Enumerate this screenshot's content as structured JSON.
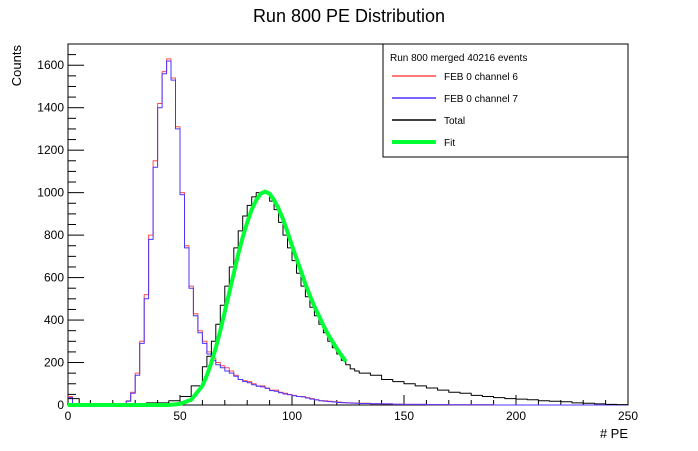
{
  "chart_data": {
    "type": "line",
    "title": "Run 800 PE Distribution",
    "xlabel": "# PE",
    "ylabel": "Counts",
    "xlim": [
      0,
      250
    ],
    "ylim": [
      0,
      1700
    ],
    "x_ticks": [
      0,
      50,
      100,
      150,
      200,
      250
    ],
    "y_ticks": [
      0,
      200,
      400,
      600,
      800,
      1000,
      1200,
      1400,
      1600
    ],
    "grid": false,
    "legend_position": "top-right",
    "legend_header": "Run 800 merged 40216 events",
    "series": [
      {
        "name": "FEB 0 channel 6",
        "color": "#ff4d4d",
        "style": "histogram",
        "x": [
          0,
          2,
          4,
          6,
          8,
          10,
          12,
          14,
          16,
          18,
          20,
          22,
          24,
          26,
          28,
          30,
          32,
          34,
          36,
          38,
          40,
          42,
          44,
          46,
          48,
          50,
          52,
          54,
          56,
          58,
          60,
          62,
          64,
          66,
          68,
          70,
          72,
          74,
          76,
          78,
          80,
          82,
          84,
          86,
          88,
          90,
          92,
          94,
          96,
          98,
          100,
          102,
          104,
          106,
          108,
          110,
          112,
          114,
          116,
          118,
          120,
          122,
          124,
          126,
          128,
          130,
          135,
          140,
          145,
          150,
          160,
          170,
          180,
          190,
          200,
          210,
          220,
          230,
          240,
          250
        ],
        "values": [
          40,
          0,
          0,
          0,
          0,
          0,
          0,
          0,
          0,
          0,
          0,
          0,
          5,
          20,
          60,
          150,
          300,
          520,
          800,
          1150,
          1420,
          1570,
          1630,
          1540,
          1310,
          1000,
          750,
          560,
          430,
          350,
          300,
          250,
          220,
          200,
          185,
          175,
          160,
          140,
          120,
          115,
          110,
          100,
          90,
          90,
          80,
          70,
          70,
          60,
          55,
          50,
          45,
          40,
          40,
          35,
          30,
          25,
          20,
          20,
          18,
          16,
          14,
          12,
          10,
          10,
          9,
          8,
          6,
          5,
          4,
          3,
          2,
          1,
          1,
          0,
          0,
          0,
          0,
          0,
          0,
          0
        ]
      },
      {
        "name": "FEB 0 channel 7",
        "color": "#4d33ff",
        "style": "histogram",
        "x": [
          0,
          2,
          4,
          6,
          8,
          10,
          12,
          14,
          16,
          18,
          20,
          22,
          24,
          26,
          28,
          30,
          32,
          34,
          36,
          38,
          40,
          42,
          44,
          46,
          48,
          50,
          52,
          54,
          56,
          58,
          60,
          62,
          64,
          66,
          68,
          70,
          72,
          74,
          76,
          78,
          80,
          82,
          84,
          86,
          88,
          90,
          92,
          94,
          96,
          98,
          100,
          102,
          104,
          106,
          108,
          110,
          112,
          114,
          116,
          118,
          120,
          122,
          124,
          126,
          128,
          130,
          135,
          140,
          145,
          150,
          160,
          170,
          180,
          190,
          200,
          210,
          220,
          230,
          240,
          250
        ],
        "values": [
          35,
          0,
          0,
          0,
          0,
          0,
          0,
          0,
          0,
          0,
          0,
          0,
          4,
          18,
          55,
          140,
          290,
          500,
          780,
          1120,
          1400,
          1560,
          1620,
          1530,
          1300,
          990,
          740,
          550,
          420,
          340,
          290,
          240,
          210,
          190,
          175,
          160,
          150,
          135,
          120,
          110,
          105,
          95,
          88,
          85,
          78,
          68,
          65,
          58,
          52,
          48,
          44,
          40,
          38,
          33,
          28,
          24,
          20,
          18,
          16,
          14,
          12,
          11,
          10,
          9,
          8,
          7,
          6,
          5,
          4,
          3,
          2,
          1,
          1,
          0,
          0,
          0,
          0,
          0,
          0,
          0
        ]
      },
      {
        "name": "Total",
        "color": "#000000",
        "style": "histogram",
        "x": [
          0,
          5,
          10,
          15,
          20,
          25,
          30,
          35,
          40,
          45,
          50,
          55,
          60,
          62,
          64,
          66,
          68,
          70,
          72,
          74,
          76,
          78,
          80,
          82,
          84,
          86,
          88,
          90,
          92,
          94,
          96,
          98,
          100,
          102,
          104,
          106,
          108,
          110,
          112,
          114,
          116,
          118,
          120,
          122,
          124,
          126,
          128,
          130,
          135,
          140,
          145,
          150,
          155,
          160,
          165,
          170,
          175,
          180,
          185,
          190,
          195,
          200,
          205,
          210,
          215,
          220,
          225,
          230,
          235,
          240,
          245,
          250
        ],
        "values": [
          30,
          0,
          0,
          0,
          0,
          0,
          5,
          10,
          10,
          20,
          40,
          90,
          180,
          230,
          300,
          380,
          470,
          560,
          650,
          740,
          820,
          890,
          940,
          980,
          1000,
          1000,
          1000,
          960,
          920,
          860,
          800,
          740,
          680,
          620,
          560,
          510,
          460,
          420,
          380,
          340,
          300,
          270,
          240,
          210,
          190,
          170,
          160,
          150,
          140,
          120,
          110,
          100,
          90,
          80,
          70,
          60,
          55,
          45,
          40,
          35,
          30,
          28,
          25,
          20,
          18,
          15,
          10,
          8,
          5,
          3,
          2,
          1
        ]
      },
      {
        "name": "Fit",
        "color": "#00ff33",
        "style": "line",
        "x": [
          0,
          10,
          20,
          30,
          40,
          45,
          50,
          55,
          60,
          62,
          64,
          66,
          68,
          70,
          72,
          74,
          76,
          78,
          80,
          82,
          84,
          86,
          88,
          90,
          92,
          94,
          96,
          98,
          100,
          102,
          104,
          106,
          108,
          110,
          112,
          114,
          116,
          118,
          120,
          122,
          124
        ],
        "values": [
          0,
          0,
          0,
          0,
          0,
          0,
          5,
          25,
          90,
          140,
          200,
          270,
          350,
          440,
          530,
          620,
          710,
          790,
          860,
          920,
          965,
          995,
          1005,
          995,
          965,
          925,
          875,
          815,
          750,
          690,
          630,
          570,
          515,
          465,
          420,
          375,
          335,
          300,
          265,
          235,
          205
        ]
      }
    ]
  }
}
